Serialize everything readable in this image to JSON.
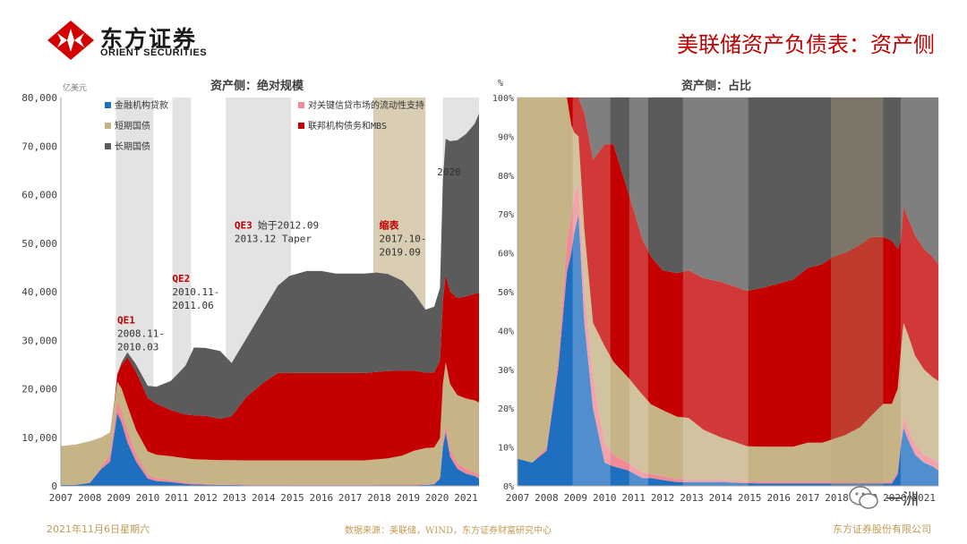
{
  "header": {
    "logo_cn": "东方证券",
    "logo_en": "ORIENT SECURITIES",
    "slide_title": "美联储资产负债表：资产侧"
  },
  "footer": {
    "date": "2021年11月6日星期六",
    "source": "数据来源：美联储，WIND，东方证券财富研究中心",
    "company": "东方证券股份有限公司",
    "watermark": "一洲"
  },
  "colors": {
    "loans": "#1f6fc1",
    "liquidity": "#f08a94",
    "short_treasury": "#c6b386",
    "agency_mbs": "#c40000",
    "long_treasury": "#5b5b5b",
    "band": "#e3e3e3",
    "taper_band": "#d9cdb4",
    "title_red": "#c00000",
    "footer_gold": "#c19a53"
  },
  "chart_data": [
    {
      "type": "area",
      "stacked": true,
      "title": "资产侧：绝对规模",
      "unit_label": "亿美元",
      "ylim": [
        0,
        80000
      ],
      "yticks": [
        "0",
        "10,000",
        "20,000",
        "30,000",
        "40,000",
        "50,000",
        "60,000",
        "70,000",
        "80,000"
      ],
      "xlim": [
        2007,
        2021.45
      ],
      "xticks": [
        "2007",
        "2008",
        "2009",
        "2010",
        "2011",
        "2012",
        "2013",
        "2014",
        "2015",
        "2016",
        "2017",
        "2018",
        "2019",
        "2020",
        "2021"
      ],
      "legend": [
        {
          "name": "金融机构贷款",
          "key": "loans"
        },
        {
          "name": "对关键信贷市场的流动性支持",
          "key": "liquidity"
        },
        {
          "name": "短期国债",
          "key": "short_treasury"
        },
        {
          "name": "联邦机构债务和MBS",
          "key": "agency_mbs"
        },
        {
          "name": "长期国债",
          "key": "long_treasury"
        }
      ],
      "bands": [
        {
          "start": 2008.9,
          "end": 2010.2,
          "kind": "qe"
        },
        {
          "start": 2010.85,
          "end": 2011.5,
          "kind": "qe"
        },
        {
          "start": 2012.7,
          "end": 2014.95,
          "kind": "qe"
        },
        {
          "start": 2017.8,
          "end": 2019.6,
          "kind": "taper"
        },
        {
          "start": 2020.2,
          "end": 2021.45,
          "kind": "qe"
        }
      ],
      "annotations": [
        {
          "x": 2008.95,
          "y": 33500,
          "head": "QE1",
          "lines": [
            "2008.11-",
            "2010.03"
          ]
        },
        {
          "x": 2010.85,
          "y": 42000,
          "head": "QE2",
          "lines": [
            "2010.11-",
            "2011.06"
          ]
        },
        {
          "x": 2013.0,
          "y": 53000,
          "head": "QE3",
          "lines": [
            "始于2012.09",
            "2013.12 Taper"
          ]
        },
        {
          "x": 2018.0,
          "y": 53000,
          "head": "缩表",
          "lines": [
            "2017.10-",
            "2019.09"
          ]
        },
        {
          "x": 2020.0,
          "y": 64000,
          "head": "",
          "lines": [
            "2020"
          ]
        }
      ],
      "x": [
        2007.0,
        2007.5,
        2008.0,
        2008.4,
        2008.7,
        2008.85,
        2008.95,
        2009.1,
        2009.3,
        2009.6,
        2010.0,
        2010.3,
        2010.8,
        2011.3,
        2011.6,
        2012.0,
        2012.5,
        2012.9,
        2013.4,
        2014.0,
        2014.5,
        2014.9,
        2015.5,
        2016.0,
        2016.5,
        2017.0,
        2017.5,
        2017.9,
        2018.3,
        2018.8,
        2019.2,
        2019.6,
        2019.9,
        2020.1,
        2020.2,
        2020.3,
        2020.45,
        2020.7,
        2021.0,
        2021.3,
        2021.45
      ],
      "series": [
        {
          "key": "loans",
          "values": [
            200,
            200,
            600,
            3500,
            5000,
            11000,
            15000,
            13000,
            9000,
            5000,
            1500,
            1000,
            800,
            400,
            300,
            250,
            200,
            200,
            150,
            150,
            150,
            150,
            150,
            150,
            150,
            150,
            150,
            150,
            150,
            150,
            150,
            200,
            300,
            1500,
            8000,
            11000,
            6000,
            3500,
            2500,
            2000,
            1500
          ]
        },
        {
          "key": "liquidity",
          "values": [
            0,
            0,
            100,
            500,
            1500,
            2000,
            2500,
            2500,
            2500,
            1500,
            800,
            600,
            400,
            300,
            200,
            150,
            100,
            100,
            100,
            100,
            100,
            100,
            100,
            100,
            100,
            100,
            100,
            100,
            100,
            100,
            100,
            100,
            100,
            300,
            1000,
            1500,
            1500,
            1200,
            1000,
            800,
            700
          ]
        },
        {
          "key": "short_treasury",
          "values": [
            8000,
            8300,
            8500,
            6000,
            4500,
            4000,
            4000,
            4500,
            5000,
            5000,
            4800,
            4800,
            4900,
            5000,
            5000,
            5000,
            5000,
            5000,
            5000,
            5000,
            5000,
            5000,
            5000,
            5000,
            5000,
            5000,
            5000,
            5200,
            5400,
            6000,
            7000,
            7500,
            7500,
            8000,
            12000,
            13000,
            13500,
            14000,
            14500,
            14800,
            15000
          ]
        },
        {
          "key": "agency_mbs",
          "values": [
            0,
            0,
            0,
            0,
            0,
            500,
            1500,
            5000,
            10000,
            12000,
            11000,
            10500,
            9500,
            9000,
            9000,
            9000,
            8500,
            9000,
            13000,
            16000,
            18000,
            18000,
            18000,
            18000,
            18000,
            18000,
            18000,
            18000,
            18000,
            17500,
            16500,
            15500,
            15500,
            16000,
            17000,
            18000,
            19000,
            20000,
            21000,
            22000,
            22500
          ]
        },
        {
          "key": "long_treasury",
          "values": [
            0,
            0,
            0,
            0,
            0,
            0,
            0,
            500,
            1000,
            1500,
            2500,
            3500,
            6000,
            10000,
            14000,
            14000,
            14000,
            11000,
            12000,
            15000,
            18000,
            20000,
            21000,
            21000,
            20500,
            20500,
            20500,
            20500,
            20000,
            18500,
            16000,
            13000,
            13500,
            15000,
            25000,
            28000,
            31000,
            32500,
            33500,
            35000,
            37000
          ]
        }
      ]
    },
    {
      "type": "area",
      "stacked": true,
      "normalized": true,
      "title": "资产侧：占比",
      "unit_label": "%",
      "ylim": [
        0,
        100
      ],
      "yticks": [
        "0%",
        "10%",
        "20%",
        "30%",
        "40%",
        "50%",
        "60%",
        "70%",
        "80%",
        "90%",
        "100%"
      ],
      "xlim": [
        2007,
        2021.5
      ],
      "xticks": [
        "2007",
        "2008",
        "2009",
        "2010",
        "2011",
        "2012",
        "2013",
        "2014",
        "2015",
        "2016",
        "2017",
        "2018",
        "2019",
        "2020",
        "2021"
      ],
      "bands": [
        {
          "start": 2008.9,
          "end": 2010.2,
          "kind": "qe"
        },
        {
          "start": 2010.85,
          "end": 2011.5,
          "kind": "qe"
        },
        {
          "start": 2012.7,
          "end": 2014.95,
          "kind": "qe"
        },
        {
          "start": 2017.8,
          "end": 2019.6,
          "kind": "taper"
        },
        {
          "start": 2020.2,
          "end": 2021.5,
          "kind": "qe"
        }
      ],
      "x": [
        2007.0,
        2007.5,
        2008.0,
        2008.4,
        2008.7,
        2008.85,
        2008.95,
        2009.1,
        2009.3,
        2009.6,
        2010.0,
        2010.3,
        2010.8,
        2011.3,
        2011.6,
        2012.0,
        2012.5,
        2012.9,
        2013.4,
        2014.0,
        2014.5,
        2014.9,
        2015.5,
        2016.0,
        2016.5,
        2017.0,
        2017.5,
        2017.9,
        2018.3,
        2018.8,
        2019.2,
        2019.6,
        2019.9,
        2020.1,
        2020.2,
        2020.3,
        2020.45,
        2020.7,
        2021.0,
        2021.3,
        2021.5
      ],
      "series": [
        {
          "key": "loans",
          "values": [
            7,
            6,
            9,
            30,
            55,
            60,
            65,
            70,
            42,
            20,
            6,
            5,
            4,
            2,
            2,
            1.5,
            1,
            1,
            1,
            1,
            0.8,
            0.7,
            0.6,
            0.6,
            0.6,
            0.6,
            0.6,
            0.6,
            0.6,
            0.6,
            0.6,
            0.6,
            0.6,
            3,
            10,
            15,
            12,
            8,
            6,
            5,
            4
          ]
        },
        {
          "key": "liquidity",
          "values": [
            0,
            0,
            1,
            3,
            8,
            9,
            10,
            8,
            9,
            8,
            5,
            3,
            2,
            1.5,
            1,
            1,
            0.8,
            0.5,
            0.5,
            0.5,
            0.5,
            0.5,
            0.5,
            0.5,
            0.5,
            0.5,
            0.5,
            0.5,
            0.5,
            0.5,
            0.5,
            0.5,
            0.5,
            1,
            2,
            3,
            3,
            2.5,
            2,
            2,
            2
          ]
        },
        {
          "key": "short_treasury",
          "values": [
            93,
            94,
            90,
            67,
            37,
            24,
            16,
            12,
            15,
            14,
            25,
            24,
            22,
            20,
            18,
            17,
            16,
            16,
            13,
            11,
            10,
            9,
            9,
            9,
            9,
            10,
            10,
            11,
            12,
            14,
            17,
            20,
            20,
            21,
            22,
            24,
            24,
            23,
            22,
            21,
            21
          ]
        },
        {
          "key": "agency_mbs",
          "values": [
            0,
            0,
            0,
            0,
            0,
            7,
            9,
            10,
            30,
            42,
            52,
            56,
            48,
            40,
            38,
            36,
            37,
            38,
            39,
            40,
            40,
            40,
            41,
            42,
            43,
            45,
            46,
            47,
            47,
            47,
            46,
            43,
            42,
            36,
            29,
            30,
            30,
            31,
            31,
            31,
            30
          ]
        },
        {
          "key": "long_treasury",
          "values": [
            0,
            0,
            0,
            0,
            0,
            0,
            0,
            0,
            4,
            16,
            12,
            12,
            24,
            36.5,
            41,
            44.5,
            45.2,
            44.5,
            46.5,
            47.5,
            48.7,
            49.8,
            48.9,
            47.9,
            46.9,
            43.9,
            42.9,
            40.9,
            39.9,
            37.9,
            35.9,
            35.9,
            36.9,
            39,
            37,
            28,
            31,
            35.5,
            39,
            41,
            43
          ]
        }
      ]
    }
  ]
}
